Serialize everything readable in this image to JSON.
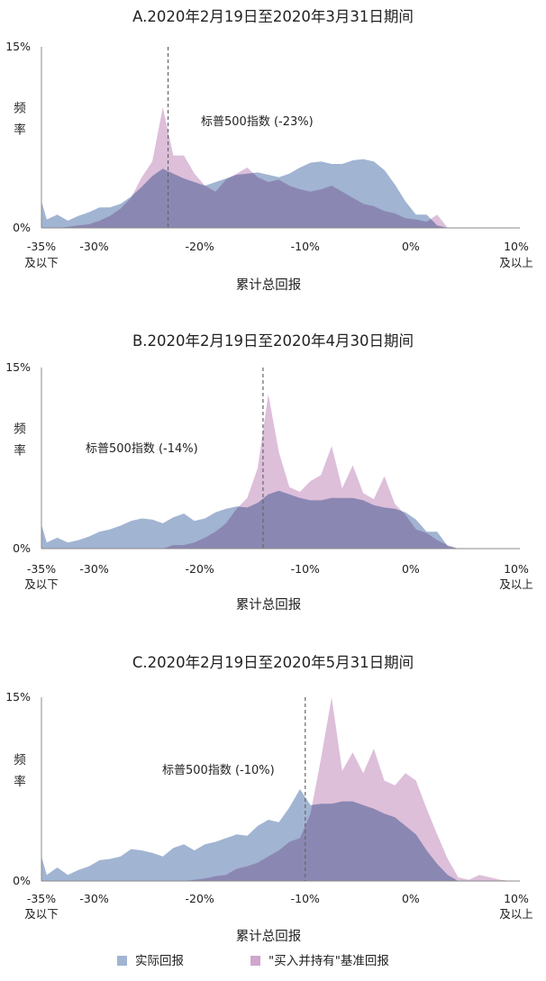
{
  "chart_data": [
    {
      "type": "area",
      "title": "A.2020年2月19日至2020年3月31日期间",
      "xlabel": "累计总回报",
      "ylabel": "频率",
      "xlim": [
        -35,
        10
      ],
      "ylim": [
        0,
        15
      ],
      "xticks": [
        "-35%",
        "-30%",
        "-20%",
        "-10%",
        "0%",
        "10%"
      ],
      "xtick_sub": [
        "及以下",
        "",
        "",
        "",
        "",
        "及以上"
      ],
      "yticks": [
        "0%",
        "15%"
      ],
      "annotation": "标普500指数 (-23%)",
      "reference_x": -23,
      "x": [
        -35,
        -34.5,
        -33.5,
        -32.5,
        -31.5,
        -30.5,
        -29.5,
        -28.5,
        -27.5,
        -26.5,
        -25.5,
        -24.5,
        -23.5,
        -22.5,
        -21.5,
        -20.5,
        -19.5,
        -18.5,
        -17.5,
        -16.5,
        -15.5,
        -14.5,
        -13.5,
        -12.5,
        -11.5,
        -10.5,
        -9.5,
        -8.5,
        -7.5,
        -6.5,
        -5.5,
        -4.5,
        -3.5,
        -2.5,
        -1.5,
        -0.5,
        0.5,
        1.5,
        2.5,
        3.5,
        4.5,
        5.5,
        6.5,
        7.5,
        8.5,
        9.5,
        10
      ],
      "series": [
        {
          "name": "实际回报",
          "color": "#a1b4d2",
          "values": [
            2.2,
            0.7,
            1.1,
            0.6,
            1.0,
            1.3,
            1.7,
            1.7,
            2.0,
            2.6,
            3.4,
            4.3,
            4.9,
            4.5,
            4.1,
            3.8,
            3.5,
            3.8,
            4.1,
            4.4,
            4.5,
            4.6,
            4.4,
            4.2,
            4.5,
            5.0,
            5.4,
            5.5,
            5.3,
            5.3,
            5.6,
            5.7,
            5.5,
            4.8,
            3.6,
            2.2,
            1.1,
            1.1,
            0.2,
            0.0,
            0.0,
            0.0,
            0.0,
            0.0,
            0.0,
            0.0,
            0.0
          ]
        },
        {
          "name": "\"买入并持有\"基准回报",
          "color": "#d0a6cc",
          "values": [
            0.0,
            0.0,
            0.0,
            0.1,
            0.2,
            0.3,
            0.6,
            1.0,
            1.6,
            2.5,
            4.2,
            5.5,
            10.0,
            6.0,
            6.0,
            4.5,
            3.5,
            3.0,
            4.0,
            4.5,
            5.0,
            4.2,
            3.8,
            4.0,
            3.5,
            3.2,
            3.0,
            3.2,
            3.5,
            3.0,
            2.5,
            2.0,
            1.8,
            1.4,
            1.2,
            0.8,
            0.7,
            0.5,
            1.1,
            0.0,
            0.0,
            0.0,
            0.0,
            0.0,
            0.0,
            0.0,
            0.0
          ]
        }
      ]
    },
    {
      "type": "area",
      "title": "B.2020年2月19日至2020年4月30日期间",
      "xlabel": "累计总回报",
      "ylabel": "频率",
      "xlim": [
        -35,
        10
      ],
      "ylim": [
        0,
        15
      ],
      "xticks": [
        "-35%",
        "-30%",
        "-20%",
        "-10%",
        "0%",
        "10%"
      ],
      "xtick_sub": [
        "及以下",
        "",
        "",
        "",
        "",
        "及以上"
      ],
      "yticks": [
        "0%",
        "15%"
      ],
      "annotation": "标普500指数 (-14%)",
      "reference_x": -14,
      "x": [
        -35,
        -34.5,
        -33.5,
        -32.5,
        -31.5,
        -30.5,
        -29.5,
        -28.5,
        -27.5,
        -26.5,
        -25.5,
        -24.5,
        -23.5,
        -22.5,
        -21.5,
        -20.5,
        -19.5,
        -18.5,
        -17.5,
        -16.5,
        -15.5,
        -14.5,
        -13.5,
        -12.5,
        -11.5,
        -10.5,
        -9.5,
        -8.5,
        -7.5,
        -6.5,
        -5.5,
        -4.5,
        -3.5,
        -2.5,
        -1.5,
        -0.5,
        0.5,
        1.5,
        2.5,
        3.5,
        4.5,
        5.5,
        6.5,
        7.5,
        8.5,
        9.5,
        10
      ],
      "series": [
        {
          "name": "实际回报",
          "color": "#a1b4d2",
          "values": [
            2.0,
            0.5,
            0.9,
            0.5,
            0.7,
            1.0,
            1.4,
            1.6,
            1.9,
            2.3,
            2.5,
            2.4,
            2.1,
            2.6,
            2.9,
            2.3,
            2.5,
            3.0,
            3.3,
            3.5,
            3.4,
            3.8,
            4.5,
            4.8,
            4.5,
            4.2,
            4.0,
            4.0,
            4.2,
            4.2,
            4.2,
            4.0,
            3.6,
            3.4,
            3.3,
            3.0,
            2.4,
            1.4,
            1.4,
            0.2,
            0.0,
            0.0,
            0.0,
            0.0,
            0.0,
            0.0,
            0.0
          ]
        },
        {
          "name": "\"买入并持有\"基准回报",
          "color": "#d0a6cc",
          "values": [
            0.0,
            0.0,
            0.0,
            0.0,
            0.0,
            0.0,
            0.0,
            0.0,
            0.0,
            0.0,
            0.0,
            0.0,
            0.0,
            0.3,
            0.3,
            0.5,
            0.9,
            1.4,
            2.1,
            3.3,
            4.2,
            6.7,
            12.8,
            8.0,
            5.1,
            4.7,
            5.6,
            6.1,
            8.5,
            5.0,
            6.9,
            4.6,
            4.1,
            6.0,
            3.7,
            2.8,
            1.6,
            1.3,
            0.7,
            0.3,
            0.0,
            0.0,
            0.0,
            0.0,
            0.0,
            0.0,
            0.0
          ]
        }
      ]
    },
    {
      "type": "area",
      "title": "C.2020年2月19日至2020年5月31日期间",
      "xlabel": "累计总回报",
      "ylabel": "频率",
      "xlim": [
        -35,
        10
      ],
      "ylim": [
        0,
        15
      ],
      "xticks": [
        "-35%",
        "-30%",
        "-20%",
        "-10%",
        "0%",
        "10%"
      ],
      "xtick_sub": [
        "及以下",
        "",
        "",
        "",
        "",
        "及以上"
      ],
      "yticks": [
        "0%",
        "15%"
      ],
      "annotation": "标普500指数 (-10%)",
      "reference_x": -10,
      "x": [
        -35,
        -34.5,
        -33.5,
        -32.5,
        -31.5,
        -30.5,
        -29.5,
        -28.5,
        -27.5,
        -26.5,
        -25.5,
        -24.5,
        -23.5,
        -22.5,
        -21.5,
        -20.5,
        -19.5,
        -18.5,
        -17.5,
        -16.5,
        -15.5,
        -14.5,
        -13.5,
        -12.5,
        -11.5,
        -10.5,
        -9.5,
        -8.5,
        -7.5,
        -6.5,
        -5.5,
        -4.5,
        -3.5,
        -2.5,
        -1.5,
        -0.5,
        0.5,
        1.5,
        2.5,
        3.5,
        4.5,
        5.5,
        6.5,
        7.5,
        8.5,
        9.5,
        10
      ],
      "series": [
        {
          "name": "实际回报",
          "color": "#a1b4d2",
          "values": [
            2.0,
            0.5,
            1.1,
            0.5,
            0.9,
            1.2,
            1.7,
            1.8,
            2.0,
            2.6,
            2.5,
            2.3,
            2.0,
            2.7,
            3.0,
            2.5,
            3.0,
            3.2,
            3.5,
            3.8,
            3.7,
            4.5,
            5.0,
            4.8,
            6.0,
            7.5,
            6.2,
            6.3,
            6.3,
            6.5,
            6.5,
            6.2,
            5.9,
            5.5,
            5.2,
            4.5,
            3.8,
            2.5,
            1.4,
            0.5,
            0.0,
            0.0,
            0.0,
            0.0,
            0.0,
            0.0,
            0.0
          ]
        },
        {
          "name": "\"买入并持有\"基准回报",
          "color": "#d0a6cc",
          "values": [
            0.0,
            0.0,
            0.0,
            0.0,
            0.0,
            0.0,
            0.0,
            0.0,
            0.0,
            0.0,
            0.0,
            0.0,
            0.0,
            0.0,
            0.0,
            0.1,
            0.2,
            0.4,
            0.5,
            1.0,
            1.2,
            1.5,
            2.0,
            2.5,
            3.2,
            3.5,
            5.5,
            10.0,
            15.0,
            9.0,
            10.5,
            8.8,
            10.8,
            8.2,
            7.8,
            8.8,
            8.2,
            5.9,
            3.8,
            1.8,
            0.3,
            0.1,
            0.5,
            0.3,
            0.1,
            0.0,
            0.0
          ]
        }
      ]
    }
  ],
  "legend": {
    "items": [
      {
        "label": "实际回报",
        "color": "#a1b4d2"
      },
      {
        "label": "\"买入并持有\"基准回报",
        "color": "#d0a6cc"
      }
    ]
  }
}
